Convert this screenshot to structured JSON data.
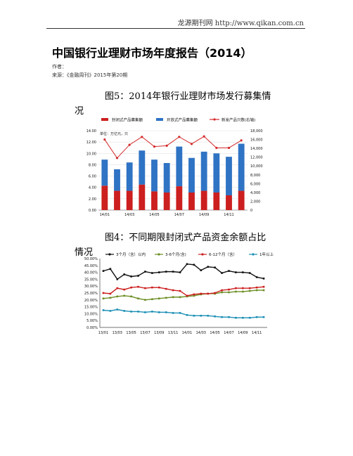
{
  "header": {
    "text": "龙源期刊网 http://www.qikan.com.cn"
  },
  "doc": {
    "title": "中国银行业理财市场年度报告（2014）",
    "author": "作者：",
    "source": "来源：《金融周刊》2015年第20期"
  },
  "figure5": {
    "caption_line1": "图5：2014年银行业理财市场发行募集情",
    "caption_line2": "况"
  },
  "figure4": {
    "caption_line1": "图4：不同期限封闭式产品资金余额占比",
    "caption_line2": "情况"
  },
  "chart_data": [
    {
      "type": "bar",
      "unit_note": "单位：万亿元，只",
      "legend": [
        "封闭式产品募集额",
        "开放式产品募集额",
        "新发产品只数(右轴)"
      ],
      "legend_position": "top",
      "categories": [
        "14/01",
        "14/02",
        "14/03",
        "14/04",
        "14/05",
        "14/06",
        "14/07",
        "14/08",
        "14/09",
        "14/10",
        "14/11",
        "14/12"
      ],
      "x_tick_labels": [
        "14/01",
        "14/03",
        "14/05",
        "14/07",
        "14/09",
        "14/11"
      ],
      "series": [
        {
          "name": "封闭式产品募集额",
          "values": [
            4.3,
            3.4,
            3.4,
            4.5,
            3.3,
            3.1,
            4.2,
            3.1,
            3.4,
            3.1,
            2.6,
            3.4
          ],
          "color": "#cc1f1f"
        },
        {
          "name": "开放式产品募集额",
          "values": [
            4.6,
            3.8,
            5.0,
            6.0,
            5.6,
            5.2,
            7.0,
            6.1,
            6.9,
            6.9,
            6.8,
            8.3
          ],
          "color": "#2f73c4"
        },
        {
          "name": "新发产品只数(右轴)",
          "values": [
            16000,
            11800,
            14800,
            16600,
            14400,
            14600,
            16600,
            15000,
            16700,
            14100,
            14100,
            15800
          ],
          "color": "#d42b2b",
          "axis": "right"
        }
      ],
      "ylim": [
        0,
        14
      ],
      "y_ticks": [
        "0.00",
        "2.00",
        "4.00",
        "6.00",
        "8.00",
        "10.00",
        "12.00",
        "14.00"
      ],
      "y2lim": [
        0,
        18000
      ],
      "y2_ticks": [
        "0",
        "2,000",
        "4,000",
        "6,000",
        "8,000",
        "10,000",
        "12,000",
        "14,000",
        "16,000",
        "18,000"
      ],
      "grid": true
    },
    {
      "type": "line",
      "legend": [
        "3个月（含）以内",
        "3-6个月(含)",
        "6-12个月（含）",
        "1年以上"
      ],
      "legend_position": "top",
      "categories": [
        "13/01",
        "13/02",
        "13/03",
        "13/04",
        "13/05",
        "13/06",
        "13/07",
        "13/08",
        "13/09",
        "13/10",
        "13/11",
        "13/12",
        "14/01",
        "14/02",
        "14/03",
        "14/04",
        "14/05",
        "14/06",
        "14/07",
        "14/08",
        "14/09",
        "14/10",
        "14/11",
        "14/12"
      ],
      "x_tick_labels": [
        "13/01",
        "13/03",
        "13/05",
        "13/07",
        "13/09",
        "13/11",
        "14/01",
        "14/03",
        "14/05",
        "14/07",
        "14/09",
        "14/11"
      ],
      "series": [
        {
          "name": "3个月（含）以内",
          "color": "#111111",
          "values": [
            41,
            42.5,
            35,
            38.5,
            37,
            37.5,
            40.5,
            39.5,
            40,
            40.5,
            40.5,
            40,
            46,
            45.5,
            41.5,
            44,
            43.5,
            39.5,
            41,
            40,
            40,
            39.5,
            36.5,
            35.5
          ]
        },
        {
          "name": "3-6个月(含)",
          "color": "#6b8e23",
          "values": [
            21,
            21.5,
            22.5,
            23,
            22.5,
            21,
            20,
            20.5,
            21,
            21.5,
            22,
            22,
            22.5,
            23,
            24,
            24.5,
            24.5,
            25.5,
            25.5,
            26,
            26,
            26.5,
            27,
            27
          ]
        },
        {
          "name": "6-12个月（含）",
          "color": "#cc1f1f",
          "values": [
            25,
            24.5,
            28.5,
            27.5,
            29,
            29.5,
            28.5,
            29,
            29,
            28,
            27,
            26.5,
            23,
            24,
            24.5,
            24.5,
            25,
            27,
            27.5,
            28.5,
            28.5,
            28.5,
            29,
            29.5
          ]
        },
        {
          "name": "1年以上",
          "color": "#1b8fb5",
          "values": [
            12.5,
            12,
            13,
            12,
            11.5,
            11.5,
            11,
            11.5,
            11,
            11,
            10.5,
            10.5,
            9,
            8.5,
            8.5,
            8.5,
            8,
            7.5,
            7.5,
            7,
            7,
            7,
            7.5,
            7.5
          ]
        }
      ],
      "ylim": [
        0,
        50
      ],
      "y_ticks": [
        "0.00%",
        "5.00%",
        "10.00%",
        "15.00%",
        "20.00%",
        "25.00%",
        "30.00%",
        "35.00%",
        "40.00%",
        "45.00%",
        "50.00%"
      ],
      "grid": false
    }
  ]
}
